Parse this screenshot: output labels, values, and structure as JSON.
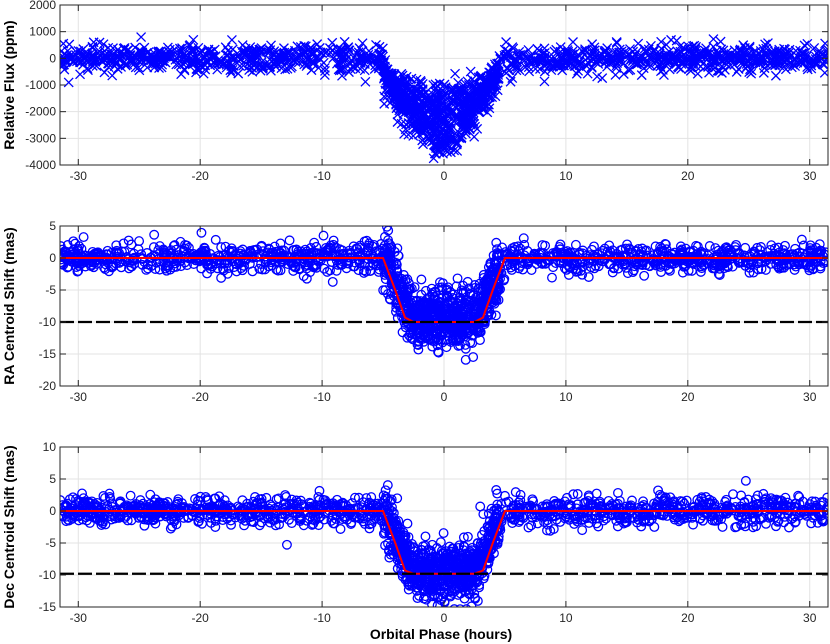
{
  "figure": {
    "xlabel": "Orbital Phase (hours)"
  },
  "chart_data": [
    {
      "type": "scatter",
      "ylabel": "Relative Flux (ppm)",
      "xlim": [
        -31.5,
        31.5
      ],
      "ylim": [
        -4000,
        2000
      ],
      "xticks": [
        -30,
        -20,
        -10,
        0,
        10,
        20,
        30
      ],
      "yticks": [
        -4000,
        -3000,
        -2000,
        -1000,
        0,
        1000,
        2000
      ],
      "grid": true,
      "marker": "x",
      "series": [
        {
          "color": "#0000ff",
          "marker": "x",
          "description_points": {
            "baseline": 0,
            "noise_sd": 250,
            "transit_depth_max": -3300,
            "transit_start": -5,
            "transit_end": 4.5
          }
        }
      ]
    },
    {
      "type": "scatter",
      "ylabel": "RA Centroid Shift (mas)",
      "xlim": [
        -31.5,
        31.5
      ],
      "ylim": [
        -20,
        5
      ],
      "xticks": [
        -30,
        -20,
        -10,
        0,
        10,
        20,
        30
      ],
      "yticks": [
        -20,
        -15,
        -10,
        -5,
        0,
        5
      ],
      "grid": true,
      "marker": "o",
      "series": [
        {
          "color": "#0000ff",
          "marker": "o",
          "description_points": {
            "baseline": 0,
            "noise_sd": 1.2,
            "in_transit_mean": -9.5
          }
        },
        {
          "color": "#ff0000",
          "type": "line",
          "model": [
            [
              -31.5,
              0
            ],
            [
              -5,
              0
            ],
            [
              -4,
              -5
            ],
            [
              -3.2,
              -9.3
            ],
            [
              -2.5,
              -10
            ],
            [
              2.5,
              -10
            ],
            [
              3.2,
              -9.3
            ],
            [
              4,
              -5
            ],
            [
              5,
              0
            ],
            [
              31.5,
              0
            ]
          ]
        },
        {
          "color": "#000000",
          "type": "dashed-line",
          "y": -10
        }
      ]
    },
    {
      "type": "scatter",
      "ylabel": "Dec Centroid Shift (mas)",
      "xlim": [
        -31.5,
        31.5
      ],
      "ylim": [
        -15,
        10
      ],
      "xticks": [
        -30,
        -20,
        -10,
        0,
        10,
        20,
        30
      ],
      "yticks": [
        -15,
        -10,
        -5,
        0,
        5,
        10
      ],
      "grid": true,
      "marker": "o",
      "series": [
        {
          "color": "#0000ff",
          "marker": "o",
          "description_points": {
            "baseline": 0,
            "noise_sd": 1.2,
            "in_transit_mean": -9.5
          }
        },
        {
          "color": "#ff0000",
          "type": "line",
          "model": [
            [
              -31.5,
              0
            ],
            [
              -5,
              0
            ],
            [
              -4,
              -5
            ],
            [
              -3.2,
              -9.3
            ],
            [
              -2.5,
              -9.8
            ],
            [
              2.5,
              -9.8
            ],
            [
              3.2,
              -9.3
            ],
            [
              4,
              -5
            ],
            [
              5,
              0
            ],
            [
              31.5,
              0
            ]
          ]
        },
        {
          "color": "#000000",
          "type": "dashed-line",
          "y": -9.8
        }
      ]
    }
  ]
}
